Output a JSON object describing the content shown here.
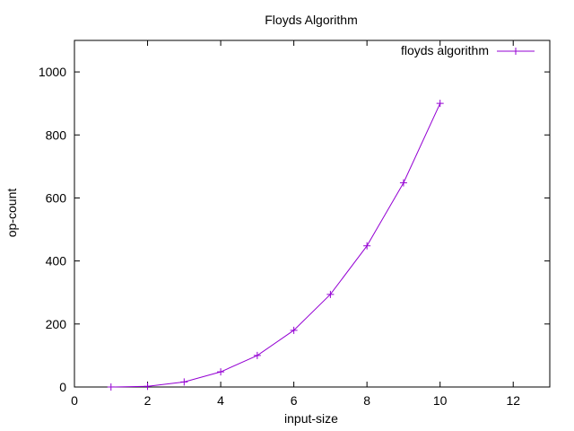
{
  "chart_data": {
    "type": "line",
    "title": "Floyds Algorithm",
    "xlabel": "input-size",
    "ylabel": "op-count",
    "xlim": [
      0,
      13
    ],
    "ylim": [
      0,
      1100
    ],
    "xticks": [
      0,
      2,
      4,
      6,
      8,
      10,
      12
    ],
    "yticks": [
      0,
      200,
      400,
      600,
      800,
      1000
    ],
    "grid": false,
    "legend_position": "top-right",
    "series": [
      {
        "name": "floyds algorithm",
        "color": "#9400d3",
        "marker": "plus",
        "x": [
          1,
          2,
          3,
          4,
          5,
          6,
          7,
          8,
          9,
          10
        ],
        "y": [
          0,
          2,
          16,
          48,
          100,
          180,
          294,
          448,
          648,
          900
        ]
      }
    ]
  }
}
